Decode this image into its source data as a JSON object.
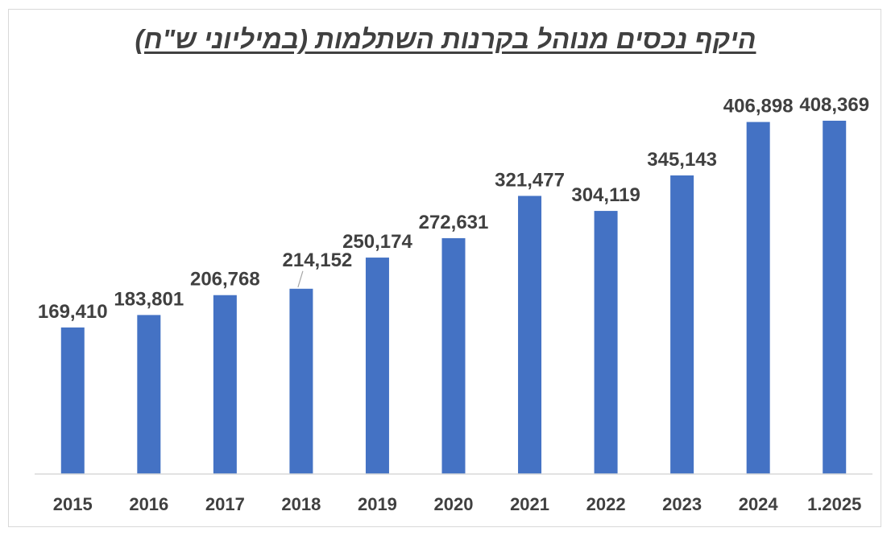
{
  "chart_data": {
    "type": "bar",
    "title": "היקף נכסים מנוהל בקרנות השתלמות (במיליוני ש\"ח)",
    "categories": [
      "2015",
      "2016",
      "2017",
      "2018",
      "2019",
      "2020",
      "2021",
      "2022",
      "2023",
      "2024",
      "1.2025"
    ],
    "values": [
      169410,
      183801,
      206768,
      214152,
      250174,
      272631,
      321477,
      304119,
      345143,
      406898,
      408369
    ],
    "value_labels": [
      "169,410",
      "183,801",
      "206,768",
      "214,152",
      "250,174",
      "272,631",
      "321,477",
      "304,119",
      "345,143",
      "406,898",
      "408,369"
    ],
    "ylim": [
      0,
      450000
    ],
    "grid": false,
    "legend": "none",
    "bar_color": "#4472C4",
    "text_color": "#404040"
  }
}
